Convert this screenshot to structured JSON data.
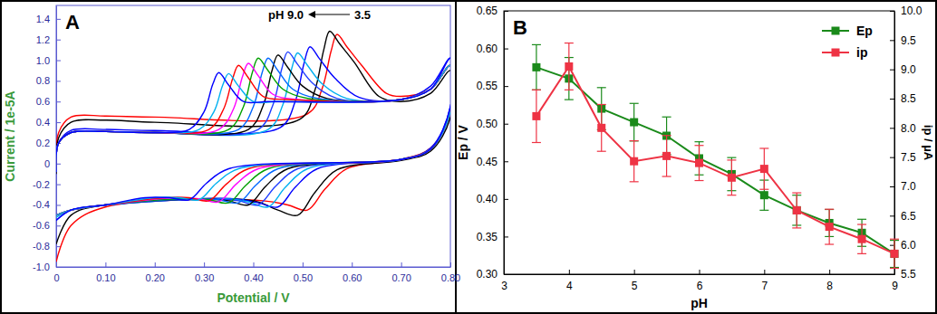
{
  "chart_data": [
    {
      "type": "line",
      "title": "A",
      "x_label": "Potential / V",
      "y_label": "Current / 1e-5A",
      "annotations": [
        "pH 9.0",
        "3.5"
      ],
      "xlim": [
        0,
        0.8
      ],
      "xticks": [
        0,
        {
          "value": 0.1,
          "label": "0.10"
        },
        {
          "value": 0.2,
          "label": "0.20"
        },
        {
          "value": 0.3,
          "label": "0.30"
        },
        {
          "value": 0.4,
          "label": "0.40"
        },
        {
          "value": 0.5,
          "label": "0.50"
        },
        {
          "value": 0.6,
          "label": "0.60"
        },
        {
          "value": 0.7,
          "label": "0.70"
        },
        {
          "value": 0.8,
          "label": "0.80"
        }
      ],
      "ylim": [
        -1.0,
        1.53
      ],
      "yticks": [
        {
          "value": -1.0,
          "label": "-1.0"
        },
        -0.8,
        -0.6,
        -0.4,
        -0.2,
        0,
        0.2,
        0.4,
        0.6,
        0.8,
        {
          "value": 1.0,
          "label": "1.0"
        },
        1.2,
        1.4
      ],
      "series": [
        {
          "color": "#ff0000",
          "x": [
            0,
            0.005,
            0.03,
            0.1,
            0.2,
            0.51,
            0.54,
            0.558,
            0.57,
            0.59,
            0.62,
            0.67,
            0.7,
            0.76,
            0.8,
            0.8,
            0.76,
            0.7,
            0.59,
            0.545,
            0.51,
            0.47,
            0.42,
            0.1,
            0.03,
            0
          ],
          "values": [
            -0.05,
            0.3,
            0.45,
            0.46,
            0.45,
            0.48,
            0.73,
            1.09,
            1.25,
            1.13,
            0.95,
            0.68,
            0.65,
            0.72,
            0.95,
            0.5,
            0.15,
            0.04,
            -0.05,
            -0.25,
            -0.45,
            -0.4,
            -0.36,
            -0.42,
            -0.6,
            -0.95
          ]
        },
        {
          "color": "#000000",
          "x": [
            0,
            0.005,
            0.03,
            0.1,
            0.2,
            0.495,
            0.525,
            0.543,
            0.555,
            0.575,
            0.605,
            0.655,
            0.7,
            0.76,
            0.8,
            0.8,
            0.76,
            0.7,
            0.57,
            0.525,
            0.49,
            0.45,
            0.4,
            0.1,
            0.03,
            0
          ],
          "values": [
            -0.1,
            0.25,
            0.4,
            0.42,
            0.4,
            0.43,
            0.71,
            1.1,
            1.28,
            1.16,
            0.98,
            0.65,
            0.6,
            0.68,
            0.9,
            0.45,
            0.12,
            0.03,
            -0.06,
            -0.28,
            -0.5,
            -0.45,
            -0.36,
            -0.4,
            -0.5,
            -0.78
          ]
        },
        {
          "color": "#0000ff",
          "x": [
            0,
            0.005,
            0.03,
            0.1,
            0.2,
            0.455,
            0.485,
            0.503,
            0.515,
            0.535,
            0.565,
            0.615,
            0.7,
            0.76,
            0.8,
            0.8,
            0.76,
            0.7,
            0.53,
            0.485,
            0.45,
            0.41,
            0.36,
            0.1,
            0.03,
            0
          ],
          "values": [
            -0.08,
            0.2,
            0.32,
            0.33,
            0.32,
            0.35,
            0.6,
            0.97,
            1.13,
            1.01,
            0.83,
            0.64,
            0.62,
            0.75,
            1.02,
            0.55,
            0.15,
            0.04,
            -0.05,
            -0.23,
            -0.42,
            -0.38,
            -0.34,
            -0.4,
            -0.45,
            -0.55
          ]
        },
        {
          "color": "#00b0f0",
          "x": [
            0,
            0.005,
            0.03,
            0.1,
            0.2,
            0.43,
            0.46,
            0.478,
            0.49,
            0.51,
            0.54,
            0.59,
            0.7,
            0.76,
            0.8,
            0.8,
            0.76,
            0.7,
            0.51,
            0.465,
            0.43,
            0.39,
            0.34,
            0.1,
            0.03,
            0
          ],
          "values": [
            -0.08,
            0.2,
            0.3,
            0.31,
            0.3,
            0.33,
            0.57,
            0.92,
            1.07,
            0.95,
            0.77,
            0.63,
            0.62,
            0.72,
            0.95,
            0.5,
            0.14,
            0.04,
            -0.05,
            -0.23,
            -0.42,
            -0.37,
            -0.34,
            -0.4,
            -0.45,
            -0.52
          ]
        },
        {
          "color": "#1e3cff",
          "x": [
            0,
            0.005,
            0.03,
            0.1,
            0.2,
            0.41,
            0.44,
            0.458,
            0.47,
            0.49,
            0.52,
            0.57,
            0.7,
            0.76,
            0.8,
            0.8,
            0.76,
            0.7,
            0.49,
            0.445,
            0.41,
            0.37,
            0.32,
            0.1,
            0.03,
            0
          ],
          "values": [
            -0.08,
            0.2,
            0.3,
            0.31,
            0.3,
            0.33,
            0.57,
            0.92,
            1.08,
            0.96,
            0.78,
            0.63,
            0.62,
            0.72,
            0.95,
            0.5,
            0.14,
            0.04,
            -0.05,
            -0.22,
            -0.4,
            -0.36,
            -0.34,
            -0.4,
            -0.45,
            -0.5
          ]
        },
        {
          "color": "#000000",
          "x": [
            0,
            0.005,
            0.03,
            0.1,
            0.2,
            0.39,
            0.42,
            0.438,
            0.45,
            0.47,
            0.5,
            0.55,
            0.7,
            0.76,
            0.8,
            0.8,
            0.76,
            0.7,
            0.47,
            0.425,
            0.39,
            0.35,
            0.3,
            0.1,
            0.03,
            0
          ],
          "values": [
            -0.08,
            0.2,
            0.3,
            0.31,
            0.3,
            0.33,
            0.56,
            0.9,
            1.05,
            0.93,
            0.75,
            0.63,
            0.62,
            0.72,
            0.95,
            0.5,
            0.14,
            0.04,
            -0.05,
            -0.22,
            -0.4,
            -0.36,
            -0.34,
            -0.4,
            -0.45,
            -0.5
          ]
        },
        {
          "color": "#0066ff",
          "x": [
            0,
            0.005,
            0.03,
            0.1,
            0.2,
            0.37,
            0.4,
            0.418,
            0.43,
            0.45,
            0.48,
            0.53,
            0.7,
            0.76,
            0.8,
            0.8,
            0.76,
            0.7,
            0.45,
            0.405,
            0.37,
            0.33,
            0.28,
            0.1,
            0.03,
            0
          ],
          "values": [
            -0.08,
            0.2,
            0.3,
            0.31,
            0.3,
            0.33,
            0.55,
            0.88,
            1.02,
            0.9,
            0.72,
            0.63,
            0.62,
            0.72,
            0.95,
            0.5,
            0.14,
            0.04,
            -0.05,
            -0.21,
            -0.38,
            -0.35,
            -0.34,
            -0.4,
            -0.45,
            -0.5
          ]
        },
        {
          "color": "#00a000",
          "x": [
            0,
            0.005,
            0.03,
            0.1,
            0.2,
            0.35,
            0.38,
            0.398,
            0.41,
            0.43,
            0.46,
            0.51,
            0.7,
            0.76,
            0.8,
            0.8,
            0.76,
            0.7,
            0.43,
            0.385,
            0.35,
            0.31,
            0.26,
            0.1,
            0.03,
            0
          ],
          "values": [
            -0.08,
            0.2,
            0.3,
            0.31,
            0.3,
            0.33,
            0.55,
            0.88,
            1.02,
            0.9,
            0.72,
            0.63,
            0.62,
            0.72,
            0.95,
            0.5,
            0.14,
            0.04,
            -0.05,
            -0.21,
            -0.38,
            -0.35,
            -0.34,
            -0.4,
            -0.45,
            -0.5
          ]
        },
        {
          "color": "#ff00ff",
          "x": [
            0,
            0.005,
            0.03,
            0.1,
            0.2,
            0.33,
            0.36,
            0.378,
            0.39,
            0.41,
            0.44,
            0.49,
            0.7,
            0.76,
            0.8,
            0.8,
            0.76,
            0.7,
            0.41,
            0.365,
            0.33,
            0.29,
            0.24,
            0.1,
            0.03,
            0
          ],
          "values": [
            -0.08,
            0.2,
            0.3,
            0.31,
            0.3,
            0.33,
            0.53,
            0.84,
            0.97,
            0.85,
            0.67,
            0.62,
            0.62,
            0.72,
            0.95,
            0.5,
            0.14,
            0.04,
            -0.05,
            -0.2,
            -0.37,
            -0.34,
            -0.33,
            -0.4,
            -0.45,
            -0.5
          ]
        },
        {
          "color": "#ff0000",
          "x": [
            0,
            0.005,
            0.03,
            0.1,
            0.2,
            0.31,
            0.34,
            0.358,
            0.37,
            0.39,
            0.42,
            0.47,
            0.7,
            0.76,
            0.8,
            0.8,
            0.76,
            0.7,
            0.39,
            0.345,
            0.31,
            0.27,
            0.22,
            0.1,
            0.03,
            0
          ],
          "values": [
            -0.08,
            0.2,
            0.3,
            0.31,
            0.3,
            0.33,
            0.53,
            0.82,
            0.95,
            0.83,
            0.65,
            0.62,
            0.62,
            0.72,
            0.95,
            0.5,
            0.14,
            0.04,
            -0.05,
            -0.2,
            -0.36,
            -0.33,
            -0.33,
            -0.4,
            -0.45,
            -0.5
          ]
        },
        {
          "color": "#00b0f0",
          "x": [
            0,
            0.005,
            0.03,
            0.1,
            0.2,
            0.29,
            0.32,
            0.338,
            0.35,
            0.37,
            0.4,
            0.45,
            0.7,
            0.76,
            0.8,
            0.8,
            0.76,
            0.7,
            0.37,
            0.325,
            0.29,
            0.25,
            0.2,
            0.1,
            0.03,
            0
          ],
          "values": [
            -0.08,
            0.2,
            0.3,
            0.31,
            0.3,
            0.33,
            0.5,
            0.76,
            0.87,
            0.75,
            0.6,
            0.6,
            0.62,
            0.72,
            0.95,
            0.5,
            0.14,
            0.04,
            -0.05,
            -0.19,
            -0.35,
            -0.33,
            -0.33,
            -0.4,
            -0.45,
            -0.5
          ]
        },
        {
          "color": "#0000ff",
          "x": [
            0,
            0.005,
            0.03,
            0.1,
            0.2,
            0.27,
            0.3,
            0.318,
            0.33,
            0.35,
            0.38,
            0.43,
            0.7,
            0.76,
            0.8,
            0.8,
            0.76,
            0.7,
            0.35,
            0.305,
            0.27,
            0.23,
            0.18,
            0.1,
            0.03,
            0
          ],
          "values": [
            -0.08,
            0.2,
            0.3,
            0.31,
            0.3,
            0.33,
            0.5,
            0.77,
            0.88,
            0.76,
            0.6,
            0.6,
            0.62,
            0.72,
            1.02,
            0.55,
            0.14,
            0.04,
            -0.05,
            -0.19,
            -0.35,
            -0.33,
            -0.33,
            -0.4,
            -0.45,
            -0.55
          ]
        }
      ]
    },
    {
      "type": "line",
      "title": "B",
      "x_label": "pH",
      "y_label": "Ep / V",
      "y2_label": "ip / µA",
      "legend": "upper right",
      "xlim": [
        3,
        9
      ],
      "xticks": [
        3,
        4,
        5,
        6,
        7,
        8,
        9
      ],
      "ylim": [
        0.3,
        0.65
      ],
      "yticks": [
        {
          "value": 0.3,
          "label": "0.30"
        },
        0.35,
        {
          "value": 0.4,
          "label": "0.40"
        },
        0.45,
        {
          "value": 0.5,
          "label": "0.50"
        },
        0.55,
        {
          "value": 0.6,
          "label": "0.60"
        },
        0.65
      ],
      "y2lim": [
        5.5,
        10.0
      ],
      "y2ticks": [
        5.5,
        {
          "value": 6,
          "label": "6.0"
        },
        6.5,
        {
          "value": 7,
          "label": "7.0"
        },
        7.5,
        {
          "value": 8,
          "label": "8.0"
        },
        8.5,
        {
          "value": 9,
          "label": "9.0"
        },
        9.5,
        {
          "value": 10,
          "label": "10.0"
        }
      ],
      "x": [
        3.5,
        4.0,
        4.5,
        5.0,
        5.5,
        6.0,
        6.5,
        7.0,
        7.5,
        8.0,
        8.5,
        9.0
      ],
      "series": [
        {
          "name": "Ep",
          "color": "#1a8a1a",
          "marker": "square",
          "line_style": "solid",
          "values": [
            0.575,
            0.56,
            0.52,
            0.502,
            0.484,
            0.454,
            0.433,
            0.405,
            0.385,
            0.368,
            0.355,
            0.327
          ],
          "errors": [
            0.03,
            0.028,
            0.028,
            0.025,
            0.025,
            0.022,
            0.022,
            0.02,
            0.02,
            0.018,
            0.018,
            0.018
          ]
        },
        {
          "name": "ip",
          "color": "#ee3344",
          "marker": "square",
          "line_style": "solid",
          "axis": "y2",
          "values": [
            8.2,
            9.05,
            8.0,
            7.43,
            7.52,
            7.4,
            7.15,
            7.3,
            6.59,
            6.31,
            6.1,
            5.85
          ],
          "errors": [
            0.45,
            0.4,
            0.4,
            0.35,
            0.35,
            0.3,
            0.3,
            0.35,
            0.3,
            0.3,
            0.25,
            0.25
          ]
        }
      ]
    }
  ]
}
